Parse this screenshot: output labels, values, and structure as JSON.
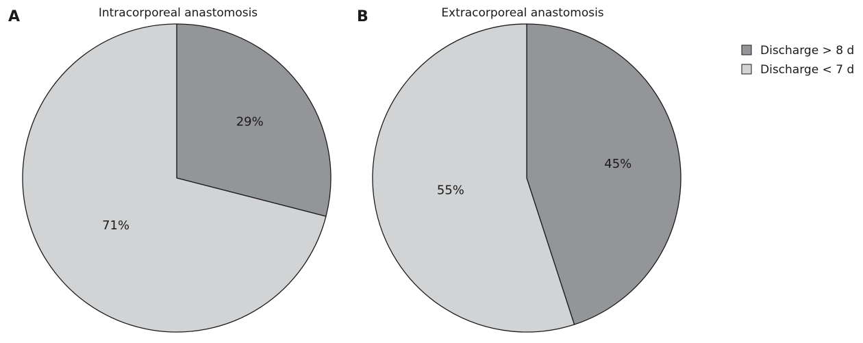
{
  "chart_data": [
    {
      "type": "pie",
      "panel": "A",
      "title": "Intracorporeal anastomosis",
      "slices": [
        {
          "label": "Discharge > 8 d",
          "value": 29,
          "display": "29%"
        },
        {
          "label": "Discharge < 7 d",
          "value": 71,
          "display": "71%"
        }
      ]
    },
    {
      "type": "pie",
      "panel": "B",
      "title": "Extracorporeal anastomosis",
      "slices": [
        {
          "label": "Discharge > 8 d",
          "value": 45,
          "display": "45%"
        },
        {
          "label": "Discharge < 7 d",
          "value": 55,
          "display": "55%"
        }
      ]
    }
  ],
  "legend": {
    "placement": "top-right",
    "items": [
      {
        "label": "Discharge > 8 d",
        "color": "#939598"
      },
      {
        "label": "Discharge < 7 d",
        "color": "#d1d3d4"
      }
    ]
  },
  "colors": {
    "discharge_gt_8d": "#939598",
    "discharge_lt_7d": "#d1d3d4",
    "outline": "#1a1a1a"
  }
}
